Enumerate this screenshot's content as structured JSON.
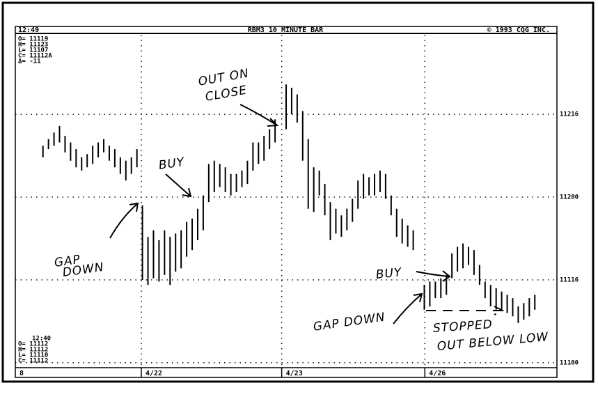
{
  "chart_data": {
    "type": "range",
    "header_left": "12:49",
    "title": "RBM3 10 MINUTE BAR",
    "header_right": "© 1993 CQG INC.",
    "corner_label": "8",
    "info_top": [
      "O= 11119",
      "H= 11123",
      "L= 11107",
      "C= 11112A",
      "Δ= -11"
    ],
    "info_bottom": [
      "12:40",
      "O= 11112",
      "H= 11112",
      "L= 11110",
      "C= 11112"
    ],
    "annotations": [
      "OUT ON",
      "CLOSE",
      "BUY",
      "GAP",
      "DOWN",
      "BUY",
      "GAP DOWN",
      "STOPPED",
      "OUT BELOW LOW"
    ],
    "color": "#000000",
    "grid": true,
    "x": [
      0,
      1,
      2,
      3,
      4,
      5,
      6,
      7,
      8,
      9,
      10,
      11,
      12,
      13,
      14,
      15,
      16,
      17,
      18,
      19,
      20,
      21,
      22,
      23,
      24,
      25,
      26,
      27,
      28,
      29,
      30,
      31,
      32,
      33,
      34,
      35,
      36,
      37,
      38,
      39,
      40,
      41,
      42,
      44,
      45,
      46,
      47,
      48,
      49,
      50,
      51,
      52,
      53,
      54,
      55,
      56,
      57,
      58,
      59,
      60,
      61,
      62,
      63,
      64,
      65,
      66,
      67,
      69,
      70,
      71,
      72,
      73,
      74,
      75,
      76,
      77,
      78,
      79,
      80,
      81,
      82,
      83,
      84,
      85,
      86,
      87,
      88,
      89
    ],
    "high": [
      112.31,
      112.35,
      112.39,
      112.43,
      112.37,
      112.33,
      112.29,
      112.24,
      112.26,
      112.31,
      112.33,
      112.35,
      112.31,
      112.29,
      112.24,
      112.22,
      112.24,
      112.29,
      111.95,
      111.76,
      111.8,
      111.74,
      111.8,
      111.76,
      111.78,
      111.8,
      111.85,
      111.87,
      111.93,
      112.01,
      112.2,
      112.22,
      112.2,
      112.18,
      112.14,
      112.14,
      112.16,
      112.22,
      112.33,
      112.33,
      112.37,
      112.41,
      112.47,
      112.68,
      112.66,
      112.62,
      112.52,
      112.35,
      112.18,
      112.16,
      112.08,
      111.97,
      111.93,
      111.89,
      111.93,
      111.99,
      112.1,
      112.14,
      112.12,
      112.14,
      112.16,
      112.14,
      112.01,
      111.93,
      111.87,
      111.83,
      111.8,
      111.47,
      111.49,
      111.49,
      111.51,
      111.53,
      111.66,
      111.7,
      111.72,
      111.7,
      111.68,
      111.59,
      111.49,
      111.47,
      111.45,
      111.43,
      111.41,
      111.39,
      111.34,
      111.36,
      111.39,
      111.41
    ],
    "low": [
      112.24,
      112.29,
      112.31,
      112.33,
      112.27,
      112.22,
      112.18,
      112.16,
      112.18,
      112.2,
      112.24,
      112.27,
      112.22,
      112.18,
      112.14,
      112.1,
      112.14,
      112.18,
      111.5,
      111.47,
      111.51,
      111.49,
      111.53,
      111.47,
      111.55,
      111.57,
      111.64,
      111.68,
      111.74,
      111.8,
      111.97,
      112.03,
      112.06,
      112.03,
      112.01,
      112.03,
      112.06,
      112.08,
      112.16,
      112.2,
      112.22,
      112.29,
      112.33,
      112.41,
      112.5,
      112.45,
      112.22,
      111.93,
      111.91,
      112.01,
      111.89,
      111.74,
      111.78,
      111.76,
      111.8,
      111.85,
      111.93,
      111.99,
      112.01,
      112.01,
      112.03,
      111.99,
      111.89,
      111.76,
      111.72,
      111.7,
      111.68,
      111.32,
      111.34,
      111.39,
      111.39,
      111.41,
      111.51,
      111.55,
      111.57,
      111.59,
      111.53,
      111.47,
      111.39,
      111.34,
      111.32,
      111.32,
      111.3,
      111.28,
      111.24,
      111.26,
      111.28,
      111.32
    ],
    "xlim": [
      -5,
      93
    ],
    "xticks": [
      {
        "value": 17.8,
        "label": "4/22"
      },
      {
        "value": 43.2,
        "label": "4/23"
      },
      {
        "value": 69.1,
        "label": "4/26"
      }
    ],
    "ylim": [
      110.97,
      112.98
    ],
    "yticks": [
      {
        "value": 111.0,
        "label": "11100"
      },
      {
        "value": 111.5,
        "label": "11116"
      },
      {
        "value": 112.0,
        "label": "11200"
      },
      {
        "value": 112.5,
        "label": "11216"
      }
    ]
  }
}
